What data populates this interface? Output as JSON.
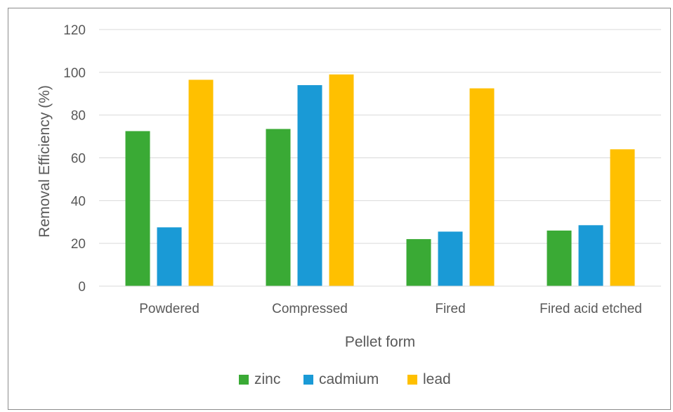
{
  "chart_data": {
    "type": "bar",
    "title": "",
    "xlabel": "Pellet form",
    "ylabel": "Removal Efficiency (%)",
    "categories": [
      "Powdered",
      "Compressed",
      "Fired",
      "Fired acid etched"
    ],
    "ylim": [
      0,
      120
    ],
    "yticks": [
      0,
      20,
      40,
      60,
      80,
      100,
      120
    ],
    "grid": true,
    "legend_position": "bottom",
    "series": [
      {
        "name": "zinc",
        "color": "#3aaa35",
        "values": [
          72.5,
          73.5,
          22,
          26
        ]
      },
      {
        "name": "cadmium",
        "color": "#1a9ad6",
        "values": [
          27.5,
          94,
          25.5,
          28.5
        ]
      },
      {
        "name": "lead",
        "color": "#ffc000",
        "values": [
          96.5,
          99,
          92.5,
          64
        ]
      }
    ]
  }
}
